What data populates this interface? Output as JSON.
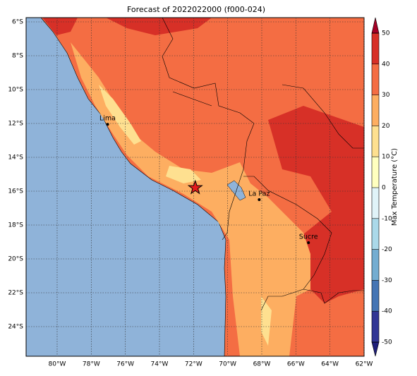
{
  "title": "Forecast of 2022022000 (f000-024)",
  "map": {
    "lonlim": [
      -81.82,
      -62
    ],
    "latlim": [
      -25.75,
      -5.75
    ],
    "lonticks": [
      {
        "value": -80,
        "label": "80°W"
      },
      {
        "value": -78,
        "label": "78°W"
      },
      {
        "value": -76,
        "label": "76°W"
      },
      {
        "value": -74,
        "label": "74°W"
      },
      {
        "value": -72,
        "label": "72°W"
      },
      {
        "value": -70,
        "label": "70°W"
      },
      {
        "value": -68,
        "label": "68°W"
      },
      {
        "value": -66,
        "label": "66°W"
      },
      {
        "value": -64,
        "label": "64°W"
      },
      {
        "value": -62,
        "label": "62°W"
      }
    ],
    "latticks": [
      {
        "value": -6,
        "label": "6°S"
      },
      {
        "value": -8,
        "label": "8°S"
      },
      {
        "value": -10,
        "label": "10°S"
      },
      {
        "value": -12,
        "label": "12°S"
      },
      {
        "value": -14,
        "label": "14°S"
      },
      {
        "value": -16,
        "label": "16°S"
      },
      {
        "value": -18,
        "label": "18°S"
      },
      {
        "value": -20,
        "label": "20°S"
      },
      {
        "value": -22,
        "label": "22°S"
      },
      {
        "value": -24,
        "label": "24°S"
      }
    ],
    "grid": true,
    "cities": [
      {
        "name": "Lima",
        "lon": -77.04,
        "lat": -12.05
      },
      {
        "name": "La Paz",
        "lon": -68.15,
        "lat": -16.5
      },
      {
        "name": "Sucre",
        "lon": -65.26,
        "lat": -19.04
      }
    ],
    "star": {
      "lon": -71.9,
      "lat": -15.8,
      "color": "#e41a1c"
    }
  },
  "colorbar": {
    "label": "Max Temperature (°C)",
    "lim": [
      -50,
      50
    ],
    "ticks": [
      -50,
      -40,
      -30,
      -20,
      -10,
      0,
      10,
      20,
      30,
      40,
      50
    ],
    "colors": [
      "#313695",
      "#4575b4",
      "#74add1",
      "#abd9e9",
      "#e0f3f8",
      "#ffffbf",
      "#fee090",
      "#fdae61",
      "#f46d43",
      "#d73027"
    ],
    "under": "#1f1f7a",
    "over": "#a50026"
  }
}
